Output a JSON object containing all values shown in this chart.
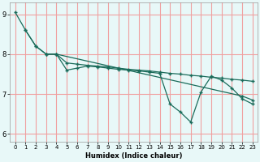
{
  "xlabel": "Humidex (Indice chaleur)",
  "bg_color": "#e8f8f8",
  "plot_bg_color": "#e8f8f8",
  "line_color": "#1a6b5a",
  "grid_color": "#f0a0a0",
  "xmin": -0.5,
  "xmax": 23.5,
  "ymin": 5.8,
  "ymax": 9.3,
  "yticks": [
    6,
    7,
    8,
    9
  ],
  "xticks": [
    0,
    1,
    2,
    3,
    4,
    5,
    6,
    7,
    8,
    9,
    10,
    11,
    12,
    13,
    14,
    15,
    16,
    17,
    18,
    19,
    20,
    21,
    22,
    23
  ],
  "line1_x": [
    0,
    1,
    2,
    3,
    4,
    22,
    23
  ],
  "line1_y": [
    9.05,
    8.6,
    8.2,
    8.0,
    8.0,
    6.95,
    6.85
  ],
  "line2_x": [
    1,
    2,
    3,
    4,
    5,
    6,
    7,
    8,
    9,
    10,
    11,
    12,
    13,
    14,
    15,
    16,
    17,
    18,
    19,
    20,
    21,
    22,
    23
  ],
  "line2_y": [
    8.6,
    8.2,
    8.0,
    8.0,
    7.6,
    7.65,
    7.7,
    7.68,
    7.65,
    7.62,
    7.6,
    7.58,
    7.55,
    7.52,
    6.75,
    6.55,
    6.3,
    7.05,
    7.45,
    7.35,
    7.15,
    6.88,
    6.75
  ],
  "line3_x": [
    3,
    4,
    5,
    6,
    7,
    8,
    9,
    10,
    11,
    12,
    13,
    14,
    15,
    16,
    17,
    18,
    19,
    20,
    21,
    22,
    23
  ],
  "line3_y": [
    8.0,
    8.0,
    7.78,
    7.75,
    7.72,
    7.7,
    7.68,
    7.65,
    7.62,
    7.6,
    7.58,
    7.55,
    7.52,
    7.5,
    7.47,
    7.45,
    7.42,
    7.4,
    7.37,
    7.35,
    7.32
  ]
}
